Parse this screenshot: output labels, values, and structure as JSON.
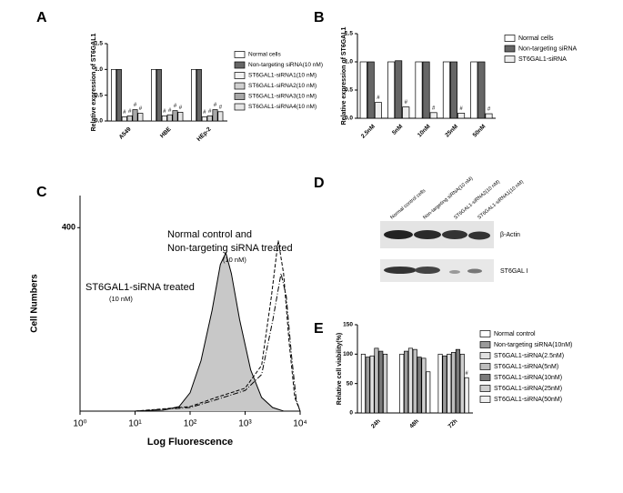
{
  "chart_data": [
    {
      "type": "bar",
      "panel": "A",
      "y_label": "Relative expression of ST6GAL1",
      "categories": [
        "A549",
        "HBE",
        "HEp-2"
      ],
      "series": [
        {
          "name": "Normal cells",
          "color": "#ffffff",
          "values": [
            1.0,
            1.0,
            1.0
          ]
        },
        {
          "name": "Non-targeting siRNA(10 nM)",
          "color": "#666666",
          "values": [
            1.0,
            1.0,
            1.0
          ]
        },
        {
          "name": "ST6GAL1-siRNA1(10 nM)",
          "color": "#f2f2f2",
          "values": [
            0.08,
            0.1,
            0.08
          ],
          "annotations": [
            "#",
            "#",
            "#"
          ]
        },
        {
          "name": "ST6GAL1-siRNA2(10 nM)",
          "color": "#d0d0d0",
          "values": [
            0.1,
            0.12,
            0.1
          ],
          "annotations": [
            "#",
            "#",
            "#"
          ]
        },
        {
          "name": "ST6GAL1-siRNA3(10 nM)",
          "color": "#a8a8a8",
          "values": [
            0.22,
            0.2,
            0.22
          ],
          "annotations": [
            "#",
            "#",
            "#"
          ]
        },
        {
          "name": "ST6GAL1-siRNA4(10 nM)",
          "color": "#e6e6e6",
          "values": [
            0.15,
            0.17,
            0.18
          ],
          "annotations": [
            "#",
            "#",
            "#"
          ]
        }
      ],
      "ylim": [
        0,
        1.5
      ],
      "yticks": [
        {
          "value": 0,
          "label": "0.0"
        },
        {
          "value": 0.5,
          "label": "0.5"
        },
        {
          "value": 1.0,
          "label": "1.0"
        },
        {
          "value": 1.5,
          "label": "1.5"
        }
      ],
      "legend": "outside right"
    },
    {
      "type": "bar",
      "panel": "B",
      "y_label": "Relative expression of ST6GAL1",
      "categories": [
        "2.5nM",
        "5nM",
        "10nM",
        "25nM",
        "50nM"
      ],
      "series": [
        {
          "name": "Normal cells",
          "color": "#ffffff",
          "values": [
            1.0,
            1.0,
            1.0,
            1.0,
            1.0
          ]
        },
        {
          "name": "Non-targeting siRNA",
          "color": "#666666",
          "values": [
            1.0,
            1.02,
            1.0,
            1.0,
            1.0
          ]
        },
        {
          "name": "ST6GAL1-siRNA",
          "color": "#eeeeee",
          "values": [
            0.28,
            0.2,
            0.1,
            0.09,
            0.08
          ],
          "annotations": [
            "#",
            "#",
            "#",
            "#",
            "#"
          ]
        }
      ],
      "ylim": [
        0,
        1.5
      ],
      "yticks": [
        {
          "value": 0,
          "label": "0.0"
        },
        {
          "value": 0.5,
          "label": "0.5"
        },
        {
          "value": 1.0,
          "label": "1.0"
        },
        {
          "value": 1.5,
          "label": "1.5"
        }
      ],
      "legend": "outside right"
    },
    {
      "type": "line",
      "panel": "C",
      "x_label": "Log Fluorescence",
      "y_label": "Cell Numbers",
      "log_x": true,
      "annotations": [
        "Normal control and",
        "Non-targeting siRNA treated",
        "(10 nM)",
        "ST6GAL1-siRNA treated",
        "(10 nM)"
      ],
      "series": [
        {
          "color": "#c8c8c8",
          "fill": true,
          "dash": "solid",
          "x": [
            10,
            32,
            63,
            100,
            158,
            251,
            355,
            447,
            562,
            794,
            1259,
            1995,
            3162,
            5012
          ],
          "values": [
            0,
            2,
            10,
            40,
            110,
            220,
            320,
            345,
            300,
            200,
            90,
            30,
            8,
            0
          ]
        },
        {
          "color": "#000000",
          "fill": false,
          "dash": "dashed",
          "x": [
            10,
            100,
            300,
            1000,
            2000,
            3000,
            4000,
            5000,
            6300,
            8000,
            10000
          ],
          "values": [
            0,
            10,
            30,
            50,
            100,
            250,
            372,
            300,
            150,
            30,
            0
          ]
        },
        {
          "color": "#000000",
          "fill": false,
          "dash": "dashdot",
          "x": [
            10,
            100,
            300,
            1000,
            2000,
            3200,
            4500,
            5600,
            7000,
            8500,
            10000
          ],
          "values": [
            0,
            8,
            25,
            45,
            80,
            200,
            300,
            250,
            120,
            25,
            0
          ]
        }
      ],
      "xlim": [
        1,
        10000
      ],
      "xticks": [
        {
          "value": 1,
          "label": "10⁰"
        },
        {
          "value": 10,
          "label": "10¹"
        },
        {
          "value": 100,
          "label": "10²"
        },
        {
          "value": 1000,
          "label": "10³"
        },
        {
          "value": 10000,
          "label": "10⁴"
        }
      ],
      "ylim": [
        0,
        470
      ],
      "yticks": [
        400
      ]
    },
    {
      "type": "bar",
      "panel": "E",
      "y_label": "Relative cell viability(%)",
      "categories": [
        "24h",
        "48h",
        "72h"
      ],
      "series": [
        {
          "name": "Normal control",
          "color": "#ffffff",
          "values": [
            100,
            100,
            100
          ]
        },
        {
          "name": "Non-targeting siRNA(10nM)",
          "color": "#9a9a9a",
          "values": [
            95,
            105,
            97
          ]
        },
        {
          "name": "ST6GAL1-siRNA(2.5nM)",
          "color": "#e0e0e0",
          "values": [
            97,
            110,
            100
          ]
        },
        {
          "name": "ST6GAL1-siRNA(5nM)",
          "color": "#bdbdbd",
          "values": [
            110,
            108,
            103
          ]
        },
        {
          "name": "ST6GAL1-siRNA(10nM)",
          "color": "#7a7a7a",
          "values": [
            105,
            95,
            108
          ]
        },
        {
          "name": "ST6GAL1-siRNA(25nM)",
          "color": "#cfcfcf",
          "values": [
            100,
            93,
            100
          ]
        },
        {
          "name": "ST6GAL1-siRNA(50nM)",
          "color": "#f0f0f0",
          "values": [
            null,
            70,
            60
          ],
          "annotations": [
            null,
            null,
            "#"
          ]
        }
      ],
      "ylim": [
        0,
        150
      ],
      "yticks": [
        0,
        50,
        100,
        150
      ],
      "legend": "outside right"
    }
  ],
  "blot": {
    "panel": "D",
    "lanes": [
      "Normal control cells",
      "Non-targeting siRNA(10 nM)",
      "ST6GAL1-siRNA2(10 nM)",
      "ST6GAL1-siRNA1(10 nM)"
    ],
    "bands": [
      "β-Actin",
      "ST6GAL I"
    ]
  }
}
